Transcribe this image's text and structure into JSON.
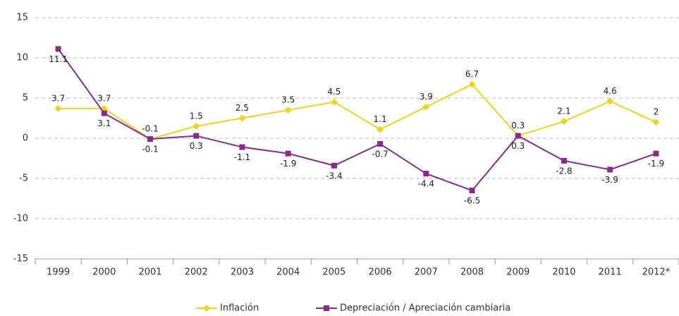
{
  "chart_data": {
    "type": "line",
    "categories": [
      "1999",
      "2000",
      "2001",
      "2002",
      "2003",
      "2004",
      "2005",
      "2006",
      "2007",
      "2008",
      "2009",
      "2010",
      "2011",
      "2012*"
    ],
    "series": [
      {
        "name": "Inflación",
        "color": "#f2d21b",
        "values": [
          3.7,
          3.7,
          -0.1,
          1.5,
          2.5,
          3.5,
          4.5,
          1.1,
          3.9,
          6.7,
          0.3,
          2.1,
          4.6,
          2.0
        ]
      },
      {
        "name": "Depreciación / Apreciación cambiaria",
        "color": "#8a2a8c",
        "values": [
          11.1,
          3.1,
          -0.1,
          0.3,
          -1.1,
          -1.9,
          -3.4,
          -0.7,
          -4.4,
          -6.5,
          0.3,
          -2.8,
          -3.9,
          -1.9
        ]
      }
    ],
    "ylim": [
      -15,
      15
    ],
    "yticks": [
      -15,
      -10,
      -5,
      0,
      5,
      10,
      15
    ],
    "grid": true,
    "legend": "bottom"
  }
}
